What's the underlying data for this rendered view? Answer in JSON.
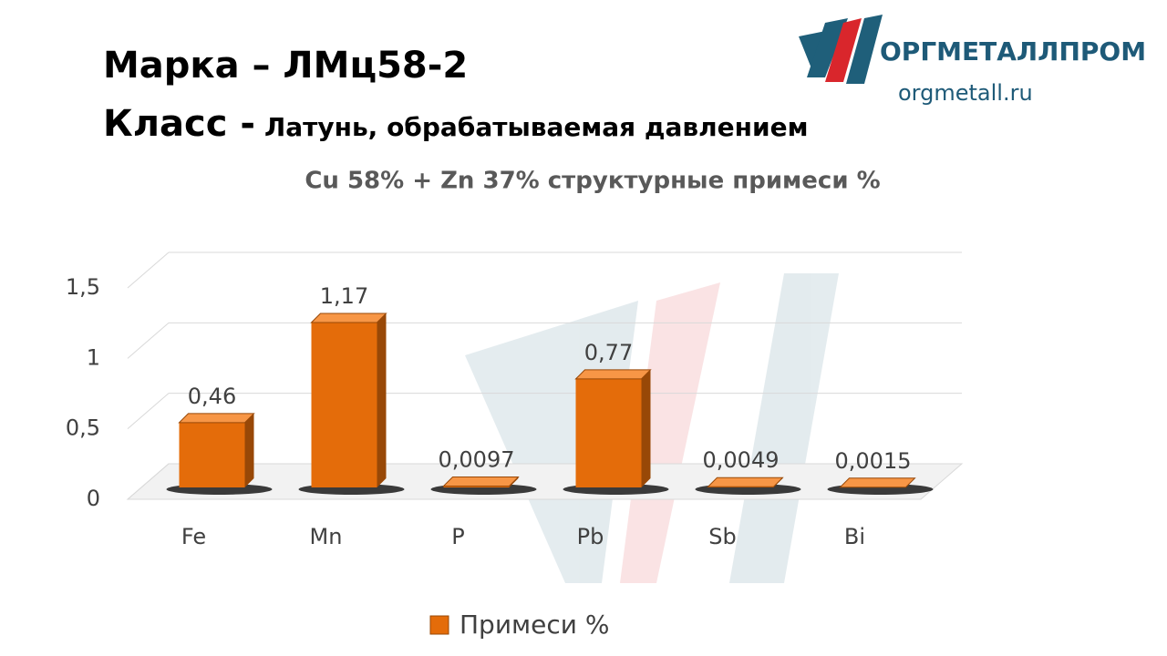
{
  "header": {
    "title": "Марка – ЛМц58-2",
    "class_label": "Класс -",
    "class_value": "Латунь, обрабатываемая давлением"
  },
  "logo": {
    "name": "ОРГМЕТАЛЛПРОМ",
    "url": "orgmetall.ru"
  },
  "chart_data": {
    "type": "bar",
    "title": "Cu 58% + Zn 37% структурные примеси %",
    "categories": [
      "Fe",
      "Mn",
      "P",
      "Pb",
      "Sb",
      "Bi"
    ],
    "series": [
      {
        "name": "Примеси %",
        "color": "#e46c0a",
        "values": [
          0.46,
          1.17,
          0.0097,
          0.77,
          0.0049,
          0.0015
        ],
        "value_labels": [
          "0,46",
          "1,17",
          "0,0097",
          "0,77",
          "0,0049",
          "0,0015"
        ]
      }
    ],
    "ylim": [
      0,
      1.5
    ],
    "yticks": [
      0,
      {
        "value": 0.5,
        "label": "0,5"
      },
      1,
      {
        "value": 1.5,
        "label": "1,5"
      }
    ],
    "grid": true,
    "legend": "bottom"
  }
}
